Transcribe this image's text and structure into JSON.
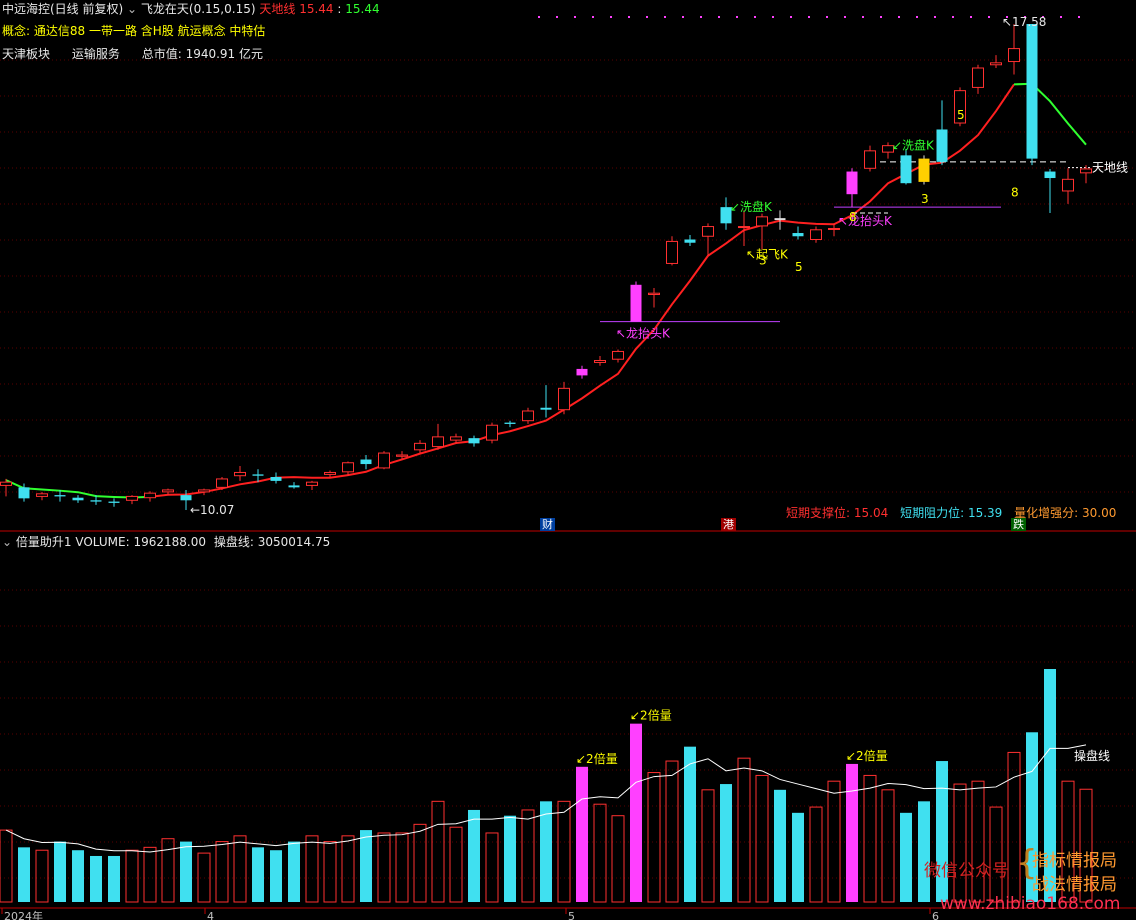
{
  "header": {
    "stock": "中远海控(日线 前复权)",
    "indicator_name": "飞龙在天(0.15,0.15)",
    "tiandixian_label": "天地线",
    "tiandixian_value": "15.44",
    "tiandixian_value2": "15.44",
    "concept_label": "概念:",
    "concepts": "通达信88 一带一路 含H股 航运概念 中特估",
    "sector": "天津板块",
    "industry": "运输服务",
    "market_cap_label": "总市值:",
    "market_cap": "1940.91 亿元"
  },
  "lower_header": {
    "indicator_name": "倍量助升1",
    "volume_label": "VOLUME:",
    "volume_value": "1962188.00",
    "caopanxian_label": "操盘线:",
    "caopanxian_value": "3050014.75"
  },
  "stats": {
    "support_label": "短期支撑位:",
    "support_value": "15.04",
    "resist_label": "短期阻力位:",
    "resist_value": "15.39",
    "strength_label": "量化增强分:",
    "strength_value": "30.00"
  },
  "markers": {
    "cai": "财",
    "gang": "港",
    "die": "跌"
  },
  "watermark": {
    "wechat": "微信公众号",
    "line1": "指标情报局",
    "line2": "战法情报局",
    "url": "www.zhibiao168.com"
  },
  "colors": {
    "up": "#ff3030",
    "down": "#40e0f0",
    "dragon": "#ff40ff",
    "ma": "#ff2020",
    "ma_tail": "#30ff30"
  },
  "chart_data": {
    "type": "candlestick",
    "title": "中远海控(日线 前复权)",
    "price_labels": {
      "high": "17.58",
      "low": "10.07"
    },
    "x_axis_labels": [
      "2024年",
      "4",
      "5",
      "6"
    ],
    "annotations": {
      "longtaitou": "龙抬头K",
      "qifei": "起飞K",
      "xipan": "洗盘K",
      "tiandixian": "天地线",
      "beiliang": "2倍量",
      "caopanxian": "操盘线"
    },
    "count_labels": [
      "3",
      "5",
      "8",
      "3",
      "5",
      "8"
    ],
    "candles": [
      [
        10.45,
        10.55,
        10.28,
        10.5
      ],
      [
        10.42,
        10.48,
        10.2,
        10.25
      ],
      [
        10.28,
        10.35,
        10.22,
        10.32
      ],
      [
        10.3,
        10.38,
        10.2,
        10.28
      ],
      [
        10.26,
        10.3,
        10.18,
        10.22
      ],
      [
        10.22,
        10.3,
        10.15,
        10.2
      ],
      [
        10.2,
        10.25,
        10.12,
        10.18
      ],
      [
        10.22,
        10.3,
        10.16,
        10.28
      ],
      [
        10.26,
        10.36,
        10.2,
        10.33
      ],
      [
        10.35,
        10.4,
        10.3,
        10.38
      ],
      [
        10.3,
        10.38,
        10.07,
        10.22
      ],
      [
        10.35,
        10.4,
        10.3,
        10.38
      ],
      [
        10.42,
        10.58,
        10.38,
        10.55
      ],
      [
        10.6,
        10.75,
        10.52,
        10.65
      ],
      [
        10.62,
        10.7,
        10.5,
        10.6
      ],
      [
        10.58,
        10.65,
        10.48,
        10.52
      ],
      [
        10.45,
        10.5,
        10.4,
        10.42
      ],
      [
        10.45,
        10.52,
        10.38,
        10.5
      ],
      [
        10.62,
        10.68,
        10.58,
        10.65
      ],
      [
        10.66,
        10.82,
        10.6,
        10.8
      ],
      [
        10.85,
        10.92,
        10.7,
        10.78
      ],
      [
        10.72,
        10.98,
        10.7,
        10.95
      ],
      [
        10.9,
        10.98,
        10.85,
        10.92
      ],
      [
        11.0,
        11.15,
        10.95,
        11.1
      ],
      [
        11.05,
        11.4,
        11.0,
        11.2
      ],
      [
        11.15,
        11.25,
        11.1,
        11.2
      ],
      [
        11.18,
        11.22,
        11.05,
        11.1
      ],
      [
        11.15,
        11.42,
        11.1,
        11.38
      ],
      [
        11.42,
        11.45,
        11.35,
        11.4
      ],
      [
        11.45,
        11.65,
        11.4,
        11.6
      ],
      [
        11.65,
        12.0,
        11.5,
        11.62
      ],
      [
        11.62,
        12.05,
        11.55,
        11.95
      ],
      [
        12.15,
        12.3,
        12.1,
        12.25
      ],
      [
        12.35,
        12.45,
        12.3,
        12.38
      ],
      [
        12.4,
        12.55,
        12.35,
        12.52
      ],
      [
        12.98,
        13.6,
        12.98,
        13.55
      ],
      [
        13.4,
        13.5,
        13.2,
        13.42
      ],
      [
        13.88,
        14.3,
        13.85,
        14.22
      ],
      [
        14.25,
        14.32,
        14.15,
        14.2
      ],
      [
        14.3,
        14.5,
        14.0,
        14.45
      ],
      [
        14.75,
        14.9,
        14.4,
        14.5
      ],
      [
        14.45,
        14.7,
        14.15,
        14.45
      ],
      [
        14.46,
        14.65,
        14.1,
        14.6
      ],
      [
        14.58,
        14.7,
        14.4,
        14.55
      ],
      [
        14.35,
        14.45,
        14.25,
        14.3
      ],
      [
        14.25,
        14.45,
        14.2,
        14.4
      ],
      [
        14.42,
        14.5,
        14.3,
        14.42
      ],
      [
        14.95,
        15.35,
        14.75,
        15.3
      ],
      [
        15.35,
        15.7,
        15.3,
        15.62
      ],
      [
        15.6,
        15.75,
        15.5,
        15.7
      ],
      [
        15.55,
        15.65,
        15.1,
        15.12
      ],
      [
        15.5,
        15.55,
        15.1,
        15.14
      ],
      [
        15.95,
        16.4,
        15.4,
        15.45
      ],
      [
        16.05,
        16.6,
        16.0,
        16.55
      ],
      [
        16.6,
        16.95,
        16.5,
        16.9
      ],
      [
        16.95,
        17.1,
        16.9,
        16.98
      ],
      [
        17.0,
        17.58,
        16.8,
        17.2
      ],
      [
        17.58,
        17.58,
        15.4,
        15.5
      ],
      [
        15.3,
        15.34,
        14.66,
        15.2
      ],
      [
        15.0,
        15.35,
        14.8,
        15.18
      ],
      [
        15.28,
        15.4,
        15.12,
        15.34
      ]
    ],
    "volume_millions": [
      1.25,
      0.95,
      0.9,
      1.05,
      0.9,
      0.8,
      0.8,
      0.9,
      0.95,
      1.1,
      1.05,
      0.85,
      1.05,
      1.15,
      0.95,
      0.9,
      1.05,
      1.15,
      1.05,
      1.15,
      1.25,
      1.2,
      1.2,
      1.35,
      1.75,
      1.3,
      1.6,
      1.2,
      1.5,
      1.6,
      1.75,
      1.75,
      2.35,
      1.7,
      1.5,
      3.1,
      2.25,
      2.45,
      2.7,
      1.95,
      2.05,
      2.5,
      2.2,
      1.95,
      1.55,
      1.65,
      2.1,
      2.4,
      2.2,
      1.95,
      1.55,
      1.75,
      2.45,
      2.05,
      2.1,
      1.65,
      2.6,
      2.95,
      4.05,
      2.1,
      1.96
    ],
    "dragon_indices": [
      32,
      35,
      47
    ],
    "xipan_indices": [
      43,
      51
    ]
  }
}
